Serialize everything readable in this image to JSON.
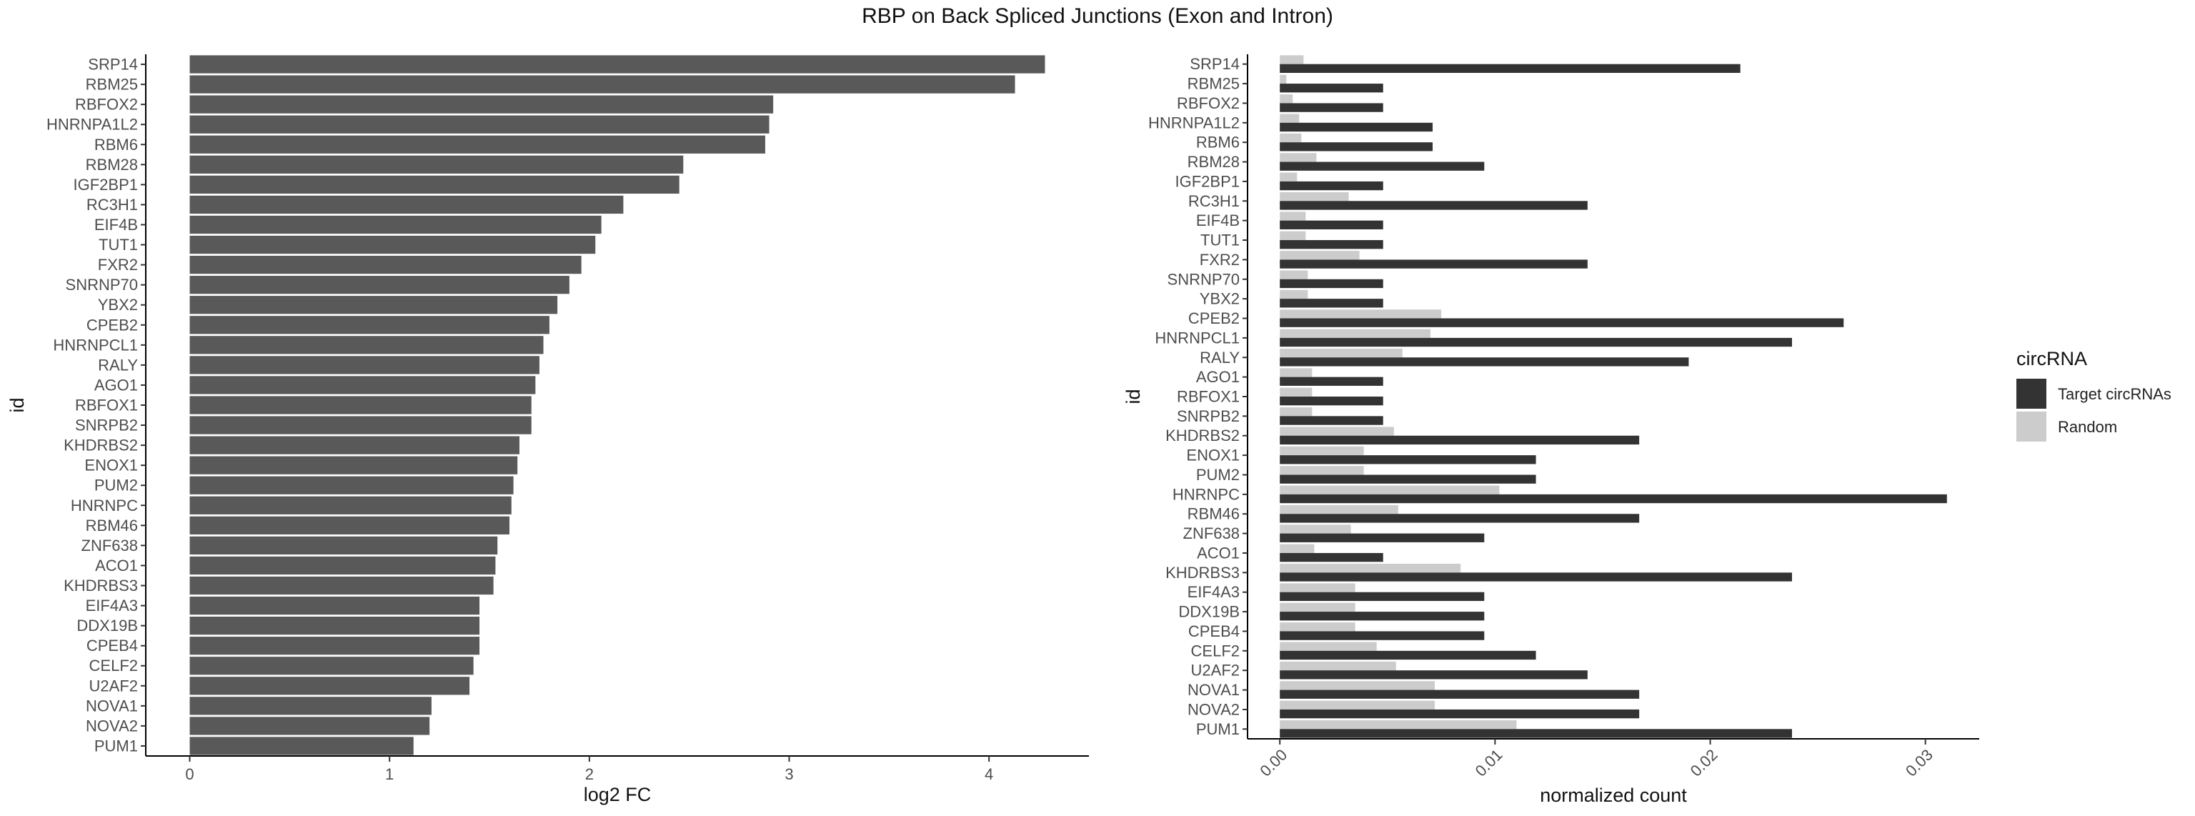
{
  "title": "RBP on Back Spliced Junctions (Exon and Intron)",
  "chart_data": [
    {
      "type": "bar",
      "orientation": "horizontal",
      "categories": [
        "SRP14",
        "RBM25",
        "RBFOX2",
        "HNRNPA1L2",
        "RBM6",
        "RBM28",
        "IGF2BP1",
        "RC3H1",
        "EIF4B",
        "TUT1",
        "FXR2",
        "SNRNP70",
        "YBX2",
        "CPEB2",
        "HNRNPCL1",
        "RALY",
        "AGO1",
        "RBFOX1",
        "SNRPB2",
        "KHDRBS2",
        "ENOX1",
        "PUM2",
        "HNRNPC",
        "RBM46",
        "ZNF638",
        "ACO1",
        "KHDRBS3",
        "EIF4A3",
        "DDX19B",
        "CPEB4",
        "CELF2",
        "U2AF2",
        "NOVA1",
        "NOVA2",
        "PUM1"
      ],
      "values": [
        4.28,
        4.13,
        2.92,
        2.9,
        2.88,
        2.47,
        2.45,
        2.17,
        2.06,
        2.03,
        1.96,
        1.9,
        1.84,
        1.8,
        1.77,
        1.75,
        1.73,
        1.71,
        1.71,
        1.65,
        1.64,
        1.62,
        1.61,
        1.6,
        1.54,
        1.53,
        1.52,
        1.45,
        1.45,
        1.45,
        1.42,
        1.4,
        1.21,
        1.2,
        1.12
      ],
      "xlabel": "log2 FC",
      "ylabel": "id",
      "xlim": [
        -0.22,
        4.5
      ],
      "xticks": [
        0,
        1,
        2,
        3,
        4
      ],
      "xtick_labels": [
        "0",
        "1",
        "2",
        "3",
        "4"
      ],
      "bar_color": "#595959",
      "grid": false
    },
    {
      "type": "bar",
      "orientation": "horizontal",
      "grouped": true,
      "categories": [
        "SRP14",
        "RBM25",
        "RBFOX2",
        "HNRNPA1L2",
        "RBM6",
        "RBM28",
        "IGF2BP1",
        "RC3H1",
        "EIF4B",
        "TUT1",
        "FXR2",
        "SNRNP70",
        "YBX2",
        "CPEB2",
        "HNRNPCL1",
        "RALY",
        "AGO1",
        "RBFOX1",
        "SNRPB2",
        "KHDRBS2",
        "ENOX1",
        "PUM2",
        "HNRNPC",
        "RBM46",
        "ZNF638",
        "ACO1",
        "KHDRBS3",
        "EIF4A3",
        "DDX19B",
        "CPEB4",
        "CELF2",
        "U2AF2",
        "NOVA1",
        "NOVA2",
        "PUM1"
      ],
      "series": [
        {
          "name": "Target circRNAs",
          "color": "#333333",
          "values": [
            0.0214,
            0.0048,
            0.0048,
            0.0071,
            0.0071,
            0.0095,
            0.0048,
            0.0143,
            0.0048,
            0.0048,
            0.0143,
            0.0048,
            0.0048,
            0.0262,
            0.0238,
            0.019,
            0.0048,
            0.0048,
            0.0048,
            0.0167,
            0.0119,
            0.0119,
            0.031,
            0.0167,
            0.0095,
            0.0048,
            0.0238,
            0.0095,
            0.0095,
            0.0095,
            0.0119,
            0.0143,
            0.0167,
            0.0167,
            0.0238
          ]
        },
        {
          "name": "Random",
          "color": "#cccccc",
          "values": [
            0.0011,
            0.0003,
            0.0006,
            0.0009,
            0.001,
            0.0017,
            0.0008,
            0.0032,
            0.0012,
            0.0012,
            0.0037,
            0.0013,
            0.0013,
            0.0075,
            0.007,
            0.0057,
            0.0015,
            0.0015,
            0.0015,
            0.0053,
            0.0039,
            0.0039,
            0.0102,
            0.0055,
            0.0033,
            0.0016,
            0.0084,
            0.0035,
            0.0035,
            0.0035,
            0.0045,
            0.0054,
            0.0072,
            0.0072,
            0.011
          ]
        }
      ],
      "xlabel": "normalized count",
      "ylabel": "id",
      "xlim": [
        -0.0015,
        0.0325
      ],
      "xticks": [
        0,
        0.01,
        0.02,
        0.03
      ],
      "xtick_labels": [
        "0.00",
        "0.01",
        "0.02",
        "0.03"
      ],
      "xtick_rotation": -45,
      "grid": false,
      "legend": {
        "title": "circRNA",
        "placement": "right",
        "labels": [
          "Target circRNAs",
          "Random"
        ]
      }
    }
  ]
}
